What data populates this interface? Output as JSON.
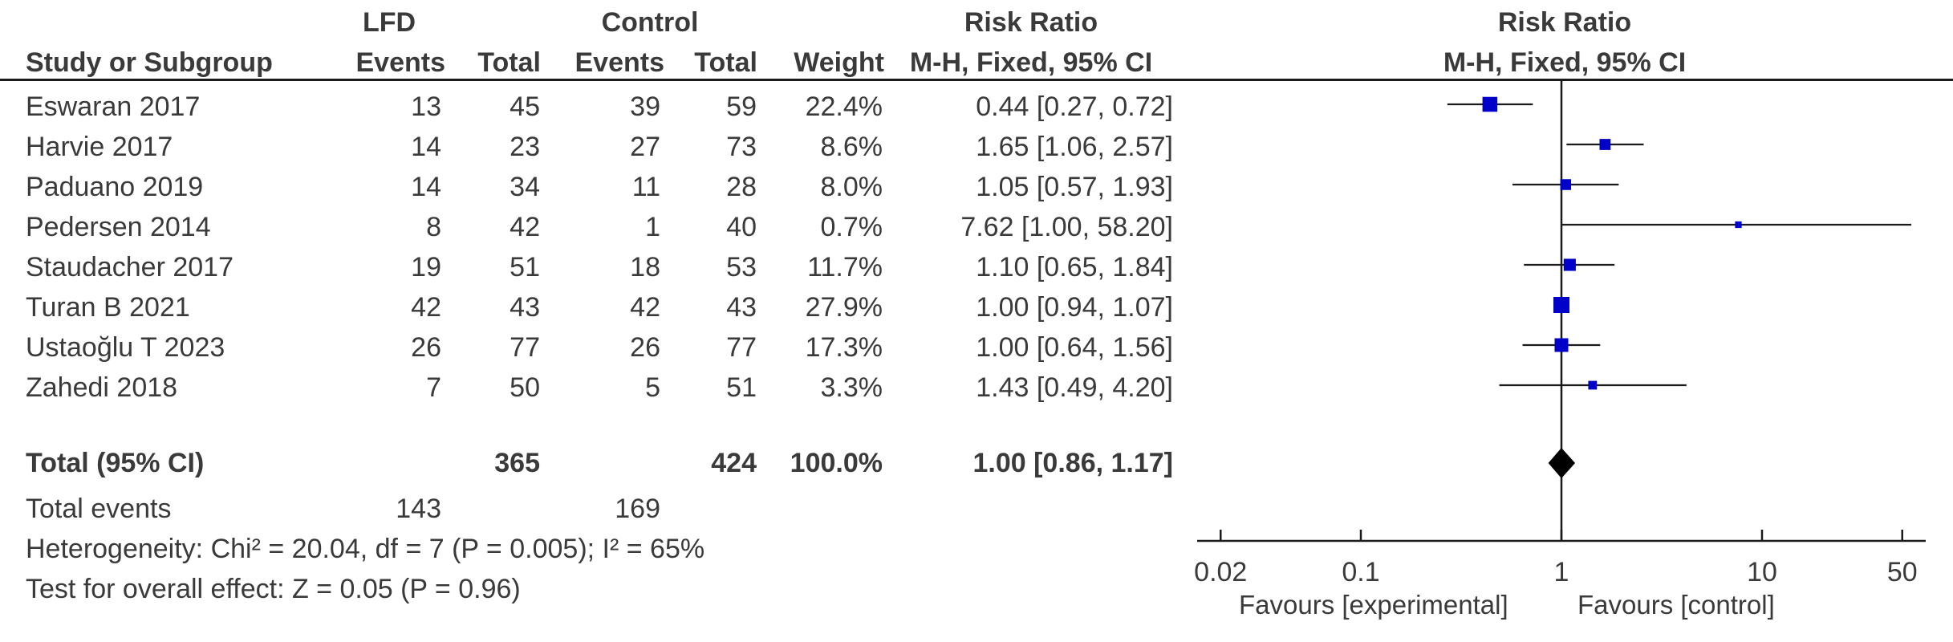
{
  "header": {
    "group_lfd": "LFD",
    "group_control": "Control",
    "group_rr": "Risk Ratio",
    "plot_title": "Risk Ratio",
    "plot_subtitle": "M-H, Fixed, 95% CI",
    "col_study": "Study or Subgroup",
    "col_lfd_events": "Events",
    "col_lfd_total": "Total",
    "col_ctl_events": "Events",
    "col_ctl_total": "Total",
    "col_weight": "Weight",
    "col_rr": "M-H, Fixed, 95% CI"
  },
  "studies": [
    {
      "name": "Eswaran 2017",
      "lfd_events": "13",
      "lfd_total": "45",
      "ctl_events": "39",
      "ctl_total": "59",
      "weight": "22.4%",
      "ci_text": "0.44 [0.27, 0.72]"
    },
    {
      "name": "Harvie 2017",
      "lfd_events": "14",
      "lfd_total": "23",
      "ctl_events": "27",
      "ctl_total": "73",
      "weight": "8.6%",
      "ci_text": "1.65 [1.06, 2.57]"
    },
    {
      "name": "Paduano 2019",
      "lfd_events": "14",
      "lfd_total": "34",
      "ctl_events": "11",
      "ctl_total": "28",
      "weight": "8.0%",
      "ci_text": "1.05 [0.57, 1.93]"
    },
    {
      "name": "Pedersen 2014",
      "lfd_events": "8",
      "lfd_total": "42",
      "ctl_events": "1",
      "ctl_total": "40",
      "weight": "0.7%",
      "ci_text": "7.62 [1.00, 58.20]"
    },
    {
      "name": "Staudacher 2017",
      "lfd_events": "19",
      "lfd_total": "51",
      "ctl_events": "18",
      "ctl_total": "53",
      "weight": "11.7%",
      "ci_text": "1.10 [0.65, 1.84]"
    },
    {
      "name": "Turan B 2021",
      "lfd_events": "42",
      "lfd_total": "43",
      "ctl_events": "42",
      "ctl_total": "43",
      "weight": "27.9%",
      "ci_text": "1.00 [0.94, 1.07]"
    },
    {
      "name": "Ustaoğlu T 2023",
      "lfd_events": "26",
      "lfd_total": "77",
      "ctl_events": "26",
      "ctl_total": "77",
      "weight": "17.3%",
      "ci_text": "1.00 [0.64, 1.56]"
    },
    {
      "name": "Zahedi 2018",
      "lfd_events": "7",
      "lfd_total": "50",
      "ctl_events": "5",
      "ctl_total": "51",
      "weight": "3.3%",
      "ci_text": "1.43 [0.49, 4.20]"
    }
  ],
  "total": {
    "label": "Total (95% CI)",
    "lfd_total": "365",
    "ctl_total": "424",
    "weight": "100.0%",
    "ci_text": "1.00 [0.86, 1.17]"
  },
  "total_events": {
    "label": "Total events",
    "lfd": "143",
    "ctl": "169"
  },
  "footer": {
    "heterogeneity": "Heterogeneity: Chi² = 20.04, df = 7 (P = 0.005); I² = 65%",
    "overall_effect": "Test for overall effect: Z = 0.05 (P = 0.96)"
  },
  "axis": {
    "favours_left": "Favours [experimental]",
    "favours_right": "Favours [control]"
  },
  "chart_data": {
    "type": "forest",
    "scale": "log",
    "xlim": [
      0.02,
      50
    ],
    "ticks": [
      {
        "value": 0.02,
        "label": "0.02"
      },
      {
        "value": 0.1,
        "label": "0.1"
      },
      {
        "value": 1,
        "label": "1"
      },
      {
        "value": 10,
        "label": "10"
      },
      {
        "value": 50,
        "label": "50"
      }
    ],
    "reference_line": 1,
    "points": [
      {
        "rr": 0.44,
        "lo": 0.27,
        "hi": 0.72,
        "weight": 22.4
      },
      {
        "rr": 1.65,
        "lo": 1.06,
        "hi": 2.57,
        "weight": 8.6
      },
      {
        "rr": 1.05,
        "lo": 0.57,
        "hi": 1.93,
        "weight": 8.0
      },
      {
        "rr": 7.62,
        "lo": 1.0,
        "hi": 58.2,
        "weight": 0.7,
        "clipped_high": true
      },
      {
        "rr": 1.1,
        "lo": 0.65,
        "hi": 1.84,
        "weight": 11.7
      },
      {
        "rr": 1.0,
        "lo": 0.94,
        "hi": 1.07,
        "weight": 27.9
      },
      {
        "rr": 1.0,
        "lo": 0.64,
        "hi": 1.56,
        "weight": 17.3
      },
      {
        "rr": 1.43,
        "lo": 0.49,
        "hi": 4.2,
        "weight": 3.3
      }
    ],
    "pooled": {
      "rr": 1.0,
      "lo": 0.86,
      "hi": 1.17
    },
    "marker_color": "#0000c8"
  }
}
